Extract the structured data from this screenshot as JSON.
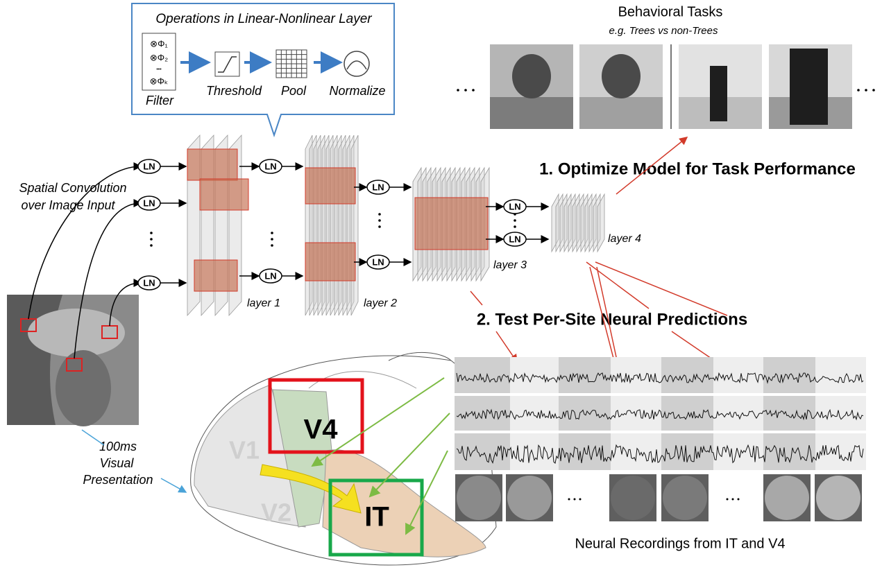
{
  "callout": {
    "title": "Operations in Linear-Nonlinear Layer",
    "filter_terms": [
      "⊗Φ₁",
      "⊗Φ₂",
      "•••",
      "⊗Φₖ"
    ],
    "steps": [
      "Filter",
      "Threshold",
      "Pool",
      "Normalize"
    ]
  },
  "input_label": [
    "Spatial Convolution",
    "over Image Input"
  ],
  "ln_nodes": [
    "LN",
    "LN",
    "LN",
    "LN",
    "LN",
    "LN",
    "LN",
    "LN",
    "LN"
  ],
  "layers": [
    "layer 1",
    "layer 2",
    "layer 3",
    "layer 4"
  ],
  "behavior": {
    "title": "Behavioral Tasks",
    "subtitle": "e.g. Trees vs non-Trees"
  },
  "steps": [
    "1. Optimize Model for Task Performance",
    "2. Test Per-Site Neural Predictions"
  ],
  "presentation": [
    "100ms",
    "Visual",
    "Presentation"
  ],
  "brain_areas": [
    "V1",
    "V2",
    "V4",
    "IT"
  ],
  "recordings_caption": "Neural Recordings from IT and V4"
}
